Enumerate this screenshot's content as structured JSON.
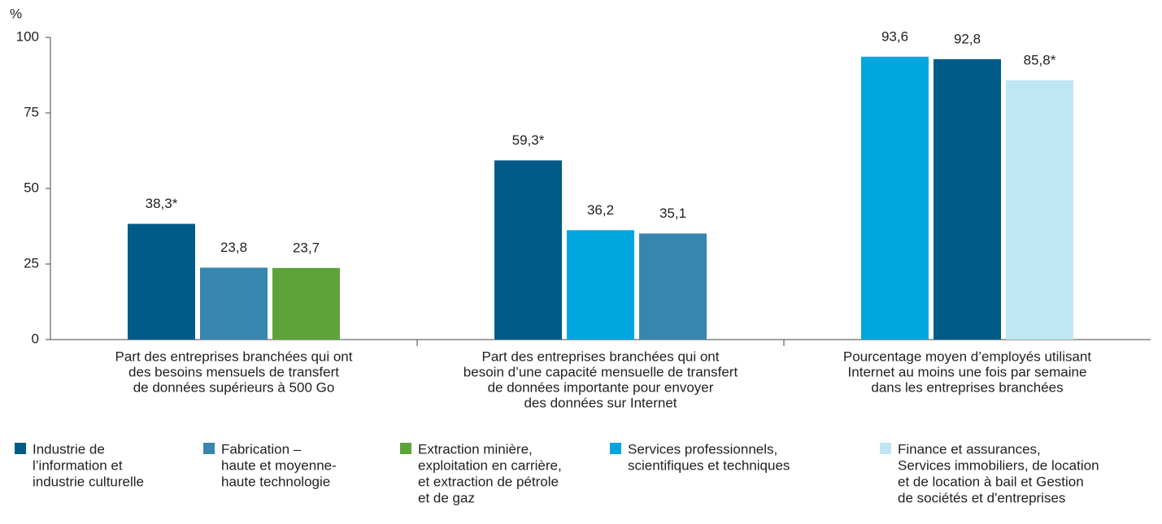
{
  "chart_data": {
    "type": "bar",
    "y_label": "%",
    "categories": [
      [
        "Part des entreprises branchées qui ont",
        "des besoins mensuels de transfert",
        "de données supérieurs à 500 Go"
      ],
      [
        "Part des entreprises branchées qui ont",
        "besoin d’une capacité mensuelle de transfert",
        "de données importante pour envoyer",
        "des données sur Internet"
      ],
      [
        "Pourcentage moyen d’employés utilisant",
        "Internet au moins une fois par semaine",
        "dans les entreprises branchées"
      ]
    ],
    "series": [
      {
        "name": [
          "Industrie de",
          "l’information et",
          "industrie culturelle"
        ],
        "color": "#005c87",
        "values": [
          38.3,
          59.3,
          92.8
        ],
        "value_labels": [
          "38,3*",
          "59,3*",
          "92,8"
        ]
      },
      {
        "name": [
          "Fabrication –",
          "haute et moyenne-",
          "haute technologie"
        ],
        "color": "#3686b0",
        "values": [
          23.8,
          35.1,
          null
        ],
        "value_labels": [
          "23,8",
          "35,1",
          null
        ]
      },
      {
        "name": [
          "Extraction minière,",
          "exploitation en carrière,",
          "et extraction de pétrole",
          "et de gaz"
        ],
        "color": "#5ea33a",
        "values": [
          23.7,
          null,
          null
        ],
        "value_labels": [
          "23,7",
          null,
          null
        ]
      },
      {
        "name": [
          "Services professionnels,",
          "scientifiques et techniques"
        ],
        "color": "#00a6de",
        "values": [
          null,
          36.2,
          93.6
        ],
        "value_labels": [
          null,
          "36,2",
          "93,6"
        ]
      },
      {
        "name": [
          "Finance et assurances,",
          "Services immobiliers, de location",
          "et de location à bail et Gestion",
          "de sociétés et d'entreprises"
        ],
        "color": "#bfe6f5",
        "values": [
          null,
          null,
          85.8
        ],
        "value_labels": [
          null,
          null,
          "85,8*"
        ]
      }
    ],
    "ylim": [
      0,
      100
    ],
    "yticks": [
      0,
      25,
      50,
      75,
      100
    ]
  }
}
